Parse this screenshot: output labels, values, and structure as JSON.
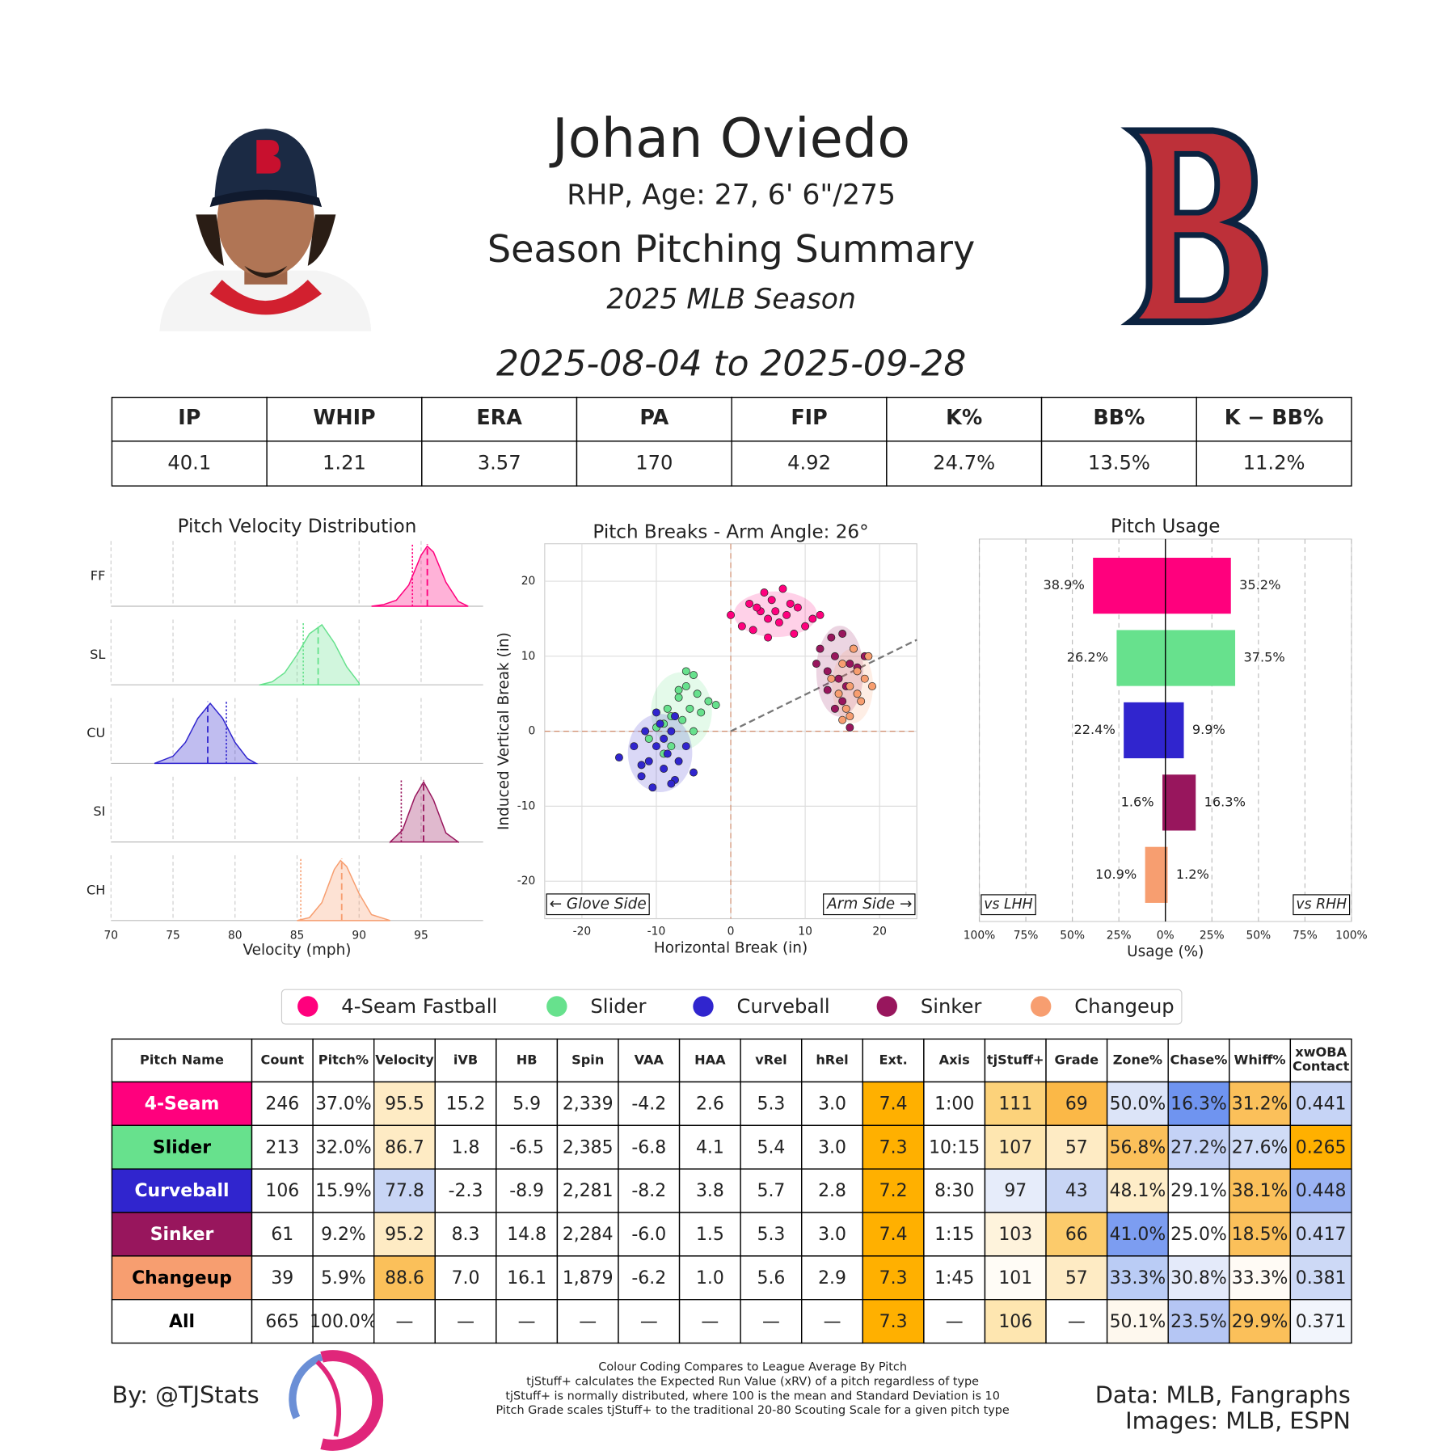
{
  "header": {
    "name": "Johan Oviedo",
    "bio": "RHP, Age: 27, 6' 6\"/275",
    "title": "Season Pitching Summary",
    "season": "2025 MLB Season",
    "dates": "2025-08-04 to 2025-09-28"
  },
  "stats_table": {
    "columns": [
      "IP",
      "WHIP",
      "ERA",
      "PA",
      "FIP",
      "K%",
      "BB%",
      "K − BB%"
    ],
    "rows": [
      [
        "40.1",
        "1.21",
        "3.57",
        "170",
        "4.92",
        "24.7%",
        "13.5%",
        "11.2%"
      ]
    ]
  },
  "chart_data": [
    {
      "type": "density",
      "title": "Pitch Velocity Distribution",
      "x_label": "Velocity (mph)",
      "xlim": [
        70,
        100
      ],
      "xticks": [
        70,
        75,
        80,
        85,
        90,
        95
      ],
      "grid": true,
      "series": [
        {
          "name": "FF",
          "color": "#FF007D",
          "mean": 95.5,
          "league_mean": 94.3,
          "x": [
            91,
            92,
            93,
            94,
            95,
            95.5,
            96,
            97,
            98,
            98.8
          ],
          "density": [
            0,
            0.03,
            0.1,
            0.35,
            0.85,
            1,
            0.9,
            0.4,
            0.08,
            0
          ]
        },
        {
          "name": "SL",
          "color": "#67E18D",
          "mean": 86.7,
          "league_mean": 85.5,
          "x": [
            82,
            83,
            84,
            85,
            86,
            87,
            88,
            89,
            90
          ],
          "density": [
            0,
            0.05,
            0.2,
            0.5,
            0.85,
            1,
            0.7,
            0.3,
            0.03
          ]
        },
        {
          "name": "CU",
          "color": "#3025CE",
          "mean": 77.8,
          "league_mean": 79.3,
          "x": [
            73.5,
            75,
            76,
            77,
            78,
            79,
            80,
            81,
            81.7
          ],
          "density": [
            0,
            0.12,
            0.35,
            0.75,
            1,
            0.75,
            0.35,
            0.08,
            0
          ]
        },
        {
          "name": "SI",
          "color": "#98165D",
          "mean": 95.2,
          "league_mean": 93.4,
          "x": [
            92.5,
            93.5,
            94.5,
            95.2,
            96,
            97,
            98
          ],
          "density": [
            0,
            0.2,
            0.75,
            1,
            0.7,
            0.15,
            0
          ]
        },
        {
          "name": "CH",
          "color": "#F79E70",
          "mean": 88.6,
          "league_mean": 85.3,
          "x": [
            85,
            86,
            87,
            88,
            88.5,
            89,
            90,
            91,
            92.5
          ],
          "density": [
            0,
            0.05,
            0.3,
            0.85,
            1,
            0.9,
            0.45,
            0.1,
            0
          ]
        }
      ]
    },
    {
      "type": "scatter",
      "title": "Pitch Breaks - Arm Angle: 26°",
      "x_label": "Horizontal Break (in)",
      "y_label": "Induced Vertical Break (in)",
      "arm_angle": 26,
      "xlim": [
        -25,
        25
      ],
      "ylim": [
        -25,
        25
      ],
      "xticks": [
        -20,
        -10,
        0,
        10,
        20
      ],
      "yticks": [
        -20,
        -10,
        0,
        10,
        20
      ],
      "grid": true,
      "annotations": [
        "← Glove Side",
        "Arm Side →"
      ],
      "series": [
        {
          "name": "4-Seam Fastball",
          "color": "#FF007D",
          "x": [
            0,
            1.5,
            2.5,
            3,
            4,
            4.5,
            5,
            5.5,
            6,
            6.5,
            7,
            7.5,
            8,
            9,
            10,
            11,
            12,
            3.5,
            8.5,
            5
          ],
          "y": [
            15.5,
            14,
            17,
            13.5,
            16,
            18.5,
            15,
            17.5,
            16,
            14.5,
            19,
            15.5,
            17,
            16.5,
            14,
            15,
            15.5,
            16.5,
            13,
            12.5
          ]
        },
        {
          "name": "Slider",
          "color": "#67E18D",
          "x": [
            -11,
            -10,
            -9,
            -8.5,
            -8,
            -7.5,
            -7,
            -6.5,
            -6,
            -5.5,
            -5,
            -4.5,
            -4,
            -3,
            -2,
            -9,
            -7,
            -5,
            -6,
            -8
          ],
          "y": [
            -1,
            0.5,
            1,
            3,
            -2,
            2,
            4.5,
            1.5,
            6,
            3,
            7.5,
            5,
            2.5,
            4,
            3.5,
            -3,
            5.5,
            0,
            8,
            2
          ]
        },
        {
          "name": "Curveball",
          "color": "#3025CE",
          "x": [
            -15,
            -13,
            -12,
            -11.5,
            -11,
            -10.5,
            -10,
            -9.5,
            -9,
            -8.5,
            -8,
            -7.5,
            -7,
            -6,
            -5,
            -10,
            -9,
            -12,
            -8,
            -7.5
          ],
          "y": [
            -3.5,
            -2,
            -6,
            0,
            -4,
            -7.5,
            -2,
            1,
            -5,
            -3,
            0,
            -6.5,
            -4,
            -2,
            -5.5,
            2.5,
            -1,
            -4.5,
            -7,
            2
          ]
        },
        {
          "name": "Sinker",
          "color": "#98165D",
          "x": [
            11.5,
            12,
            13,
            13.5,
            14,
            14.5,
            15,
            15.5,
            16,
            16.5,
            17,
            18,
            13,
            15,
            14,
            16
          ],
          "y": [
            9,
            11,
            8,
            12.5,
            10,
            7,
            13,
            6,
            9,
            11,
            8.5,
            10,
            5.5,
            4,
            3,
            0.5
          ]
        },
        {
          "name": "Changeup",
          "color": "#F79E70",
          "x": [
            13.5,
            14.5,
            15,
            15.5,
            16,
            16.5,
            17,
            17.5,
            18,
            18.5,
            19,
            16,
            17,
            15
          ],
          "y": [
            7,
            5,
            9,
            3,
            6,
            11,
            8,
            4,
            7,
            10,
            6,
            2,
            5,
            1.5
          ]
        }
      ]
    },
    {
      "type": "butterfly",
      "title": "Pitch Usage",
      "x_label": "Usage (%)",
      "xlim": [
        -100,
        100
      ],
      "grid": true,
      "xticks": [
        {
          "value": -100,
          "label": "100%"
        },
        {
          "value": -75,
          "label": "75%"
        },
        {
          "value": -50,
          "label": "50%"
        },
        {
          "value": -25,
          "label": "25%"
        },
        {
          "value": 0,
          "label": "0%"
        },
        {
          "value": 25,
          "label": "25%"
        },
        {
          "value": 50,
          "label": "50%"
        },
        {
          "value": 75,
          "label": "75%"
        },
        {
          "value": 100,
          "label": "100%"
        }
      ],
      "colors": [
        "#FF007D",
        "#67E18D",
        "#3025CE",
        "#98165D",
        "#F79E70"
      ],
      "series": [
        {
          "name": "vs LHH",
          "values": [
            38.9,
            26.2,
            22.4,
            1.6,
            10.9
          ],
          "value_labels": [
            "38.9%",
            "26.2%",
            "22.4%",
            "1.6%",
            "10.9%"
          ]
        },
        {
          "name": "vs RHH",
          "values": [
            35.2,
            37.5,
            9.9,
            16.3,
            1.2
          ],
          "value_labels": [
            "35.2%",
            "37.5%",
            "9.9%",
            "16.3%",
            "1.2%"
          ]
        }
      ]
    }
  ],
  "pitch_table": {
    "columns": [
      "Pitch Name",
      "Count",
      "Pitch%",
      "Velocity",
      "iVB",
      "HB",
      "Spin",
      "VAA",
      "HAA",
      "vRel",
      "hRel",
      "Ext.",
      "Axis",
      "tjStuff+",
      "Grade",
      "Zone%",
      "Chase%",
      "Whiff%",
      [
        "xwOBA",
        "Contact"
      ]
    ],
    "rows": [
      {
        "text_color": "#ffffff",
        "cells": [
          "4-Seam",
          "246",
          "37.0%",
          "95.5",
          "15.2",
          "5.9",
          "2,339",
          "-4.2",
          "2.6",
          "5.3",
          "3.0",
          "7.4",
          "1:00",
          "111",
          "69",
          "50.0%",
          "16.3%",
          "31.2%",
          "0.441"
        ],
        "colors": [
          "#FF007D",
          null,
          null,
          "#FEEBC4",
          null,
          null,
          null,
          null,
          null,
          null,
          null,
          "#FFB000",
          null,
          "#FCD27A",
          "#FBB847",
          "#DCE4F8",
          "#6F94F0",
          "#FBC05A",
          "#C6D4F6"
        ]
      },
      {
        "text_color": "#000000",
        "cells": [
          "Slider",
          "213",
          "32.0%",
          "86.7",
          "1.8",
          "-6.5",
          "2,385",
          "-6.8",
          "4.1",
          "5.4",
          "3.0",
          "7.3",
          "10:15",
          "107",
          "57",
          "56.8%",
          "27.2%",
          "27.6%",
          "0.265"
        ],
        "colors": [
          "#67E18D",
          null,
          null,
          "#FEEBC4",
          null,
          null,
          null,
          null,
          null,
          null,
          null,
          "#FFB000",
          null,
          "#FEE6B0",
          "#FEEBC4",
          "#FBC05A",
          "#C4D2F6",
          "#D0DCF7",
          "#FFB000"
        ]
      },
      {
        "text_color": "#ffffff",
        "cells": [
          "Curveball",
          "106",
          "15.9%",
          "77.8",
          "-2.3",
          "-8.9",
          "2,281",
          "-8.2",
          "3.8",
          "5.7",
          "2.8",
          "7.2",
          "8:30",
          "97",
          "43",
          "48.1%",
          "29.1%",
          "38.1%",
          "0.448"
        ],
        "colors": [
          "#3025CE",
          null,
          null,
          "#C8D5F5",
          null,
          null,
          null,
          null,
          null,
          null,
          null,
          "#FFB000",
          null,
          "#E6ECFA",
          "#C8D5F5",
          "#FEEDC8",
          null,
          "#FBC05A",
          "#9BB3F3"
        ]
      },
      {
        "text_color": "#ffffff",
        "cells": [
          "Sinker",
          "61",
          "9.2%",
          "95.2",
          "8.3",
          "14.8",
          "2,284",
          "-6.0",
          "1.5",
          "5.3",
          "3.0",
          "7.4",
          "1:15",
          "103",
          "66",
          "41.0%",
          "25.0%",
          "18.5%",
          "0.417"
        ],
        "colors": [
          "#98165D",
          null,
          null,
          "#FEEBC4",
          null,
          null,
          null,
          null,
          null,
          null,
          null,
          "#FFB000",
          null,
          "#FEF3DC",
          "#FCCB6B",
          "#7C9DF1",
          null,
          "#FBC05A",
          "#C8D5F5"
        ]
      },
      {
        "text_color": "#000000",
        "cells": [
          "Changeup",
          "39",
          "5.9%",
          "88.6",
          "7.0",
          "16.1",
          "1,879",
          "-6.2",
          "1.0",
          "5.6",
          "2.9",
          "7.3",
          "1:45",
          "101",
          "57",
          "33.3%",
          "30.8%",
          "33.3%",
          "0.381"
        ],
        "colors": [
          "#F79E70",
          null,
          null,
          "#FBC05A",
          null,
          null,
          null,
          null,
          null,
          null,
          null,
          "#FFB000",
          null,
          "#FFFCF6",
          "#FEEBC4",
          "#BACCF5",
          "#E4EAFA",
          "#FFFBF5",
          "#CDD9F6"
        ]
      },
      {
        "text_color": "#000000",
        "cells": [
          "All",
          "665",
          "100.0%",
          "—",
          "—",
          "—",
          "—",
          "—",
          "—",
          "—",
          "—",
          "7.3",
          "—",
          "106",
          "—",
          "50.1%",
          "23.5%",
          "29.9%",
          "0.371"
        ],
        "colors": [
          null,
          null,
          null,
          null,
          null,
          null,
          null,
          null,
          null,
          null,
          null,
          "#FFB000",
          null,
          "#FEE6B0",
          null,
          "#FEF8EE",
          "#B5C6F4",
          "#FBC05A",
          "#F2F5FC"
        ]
      }
    ]
  },
  "footer": {
    "byline": "By: @TJStats",
    "notes": [
      "Colour Coding Compares to League Average By Pitch",
      "tjStuff+ calculates the Expected Run Value (xRV) of a pitch regardless of type",
      "tjStuff+ is normally distributed, where 100 is the mean and Standard Deviation is 10",
      "Pitch Grade scales tjStuff+ to the traditional 20-80 Scouting Scale for a given pitch type"
    ],
    "sources": [
      "Data: MLB, Fangraphs",
      "Images: MLB, ESPN"
    ]
  }
}
